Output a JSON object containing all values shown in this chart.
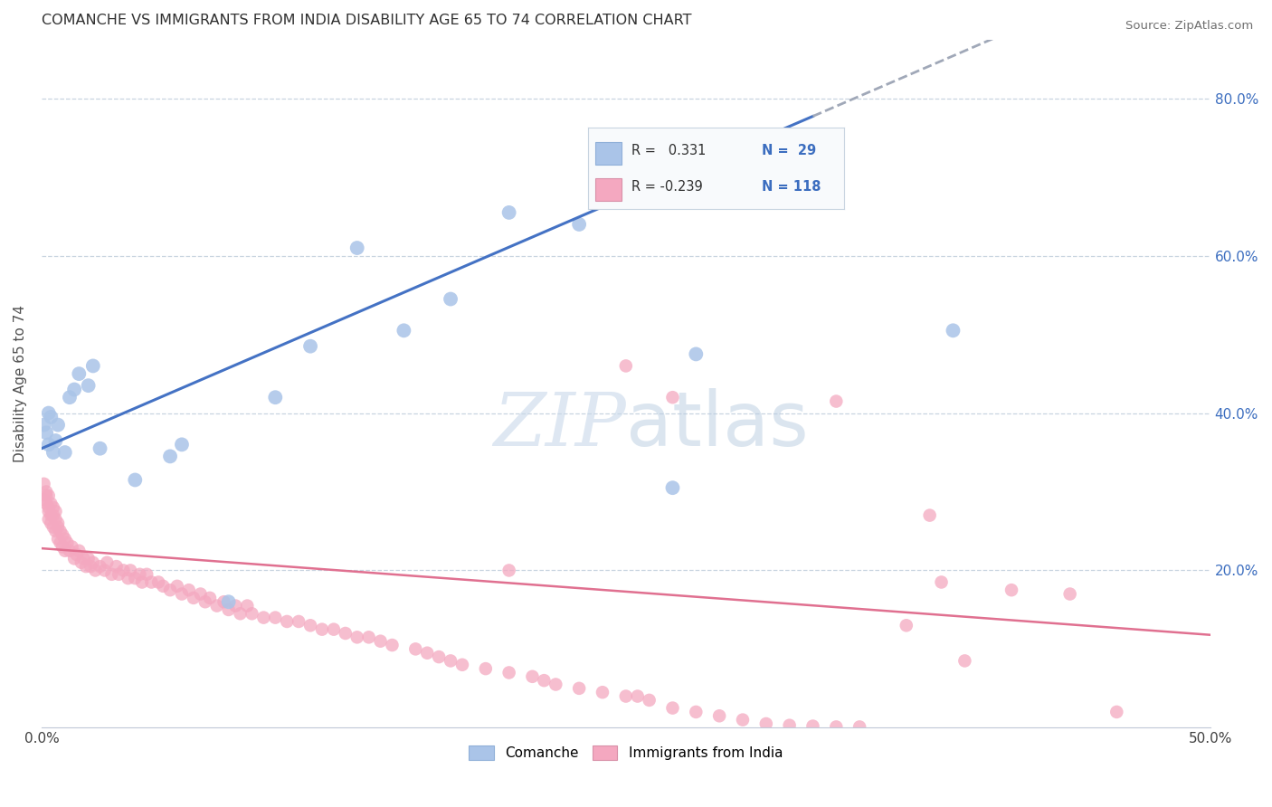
{
  "title": "COMANCHE VS IMMIGRANTS FROM INDIA DISABILITY AGE 65 TO 74 CORRELATION CHART",
  "source": "Source: ZipAtlas.com",
  "ylabel": "Disability Age 65 to 74",
  "xlim": [
    0.0,
    0.5
  ],
  "ylim": [
    0.0,
    0.875
  ],
  "comanche_color": "#aac4e8",
  "india_color": "#f4a8c0",
  "trend_comanche_solid_color": "#4472c4",
  "trend_comanche_dash_color": "#a0a8b8",
  "trend_india_color": "#e07090",
  "background_color": "#ffffff",
  "grid_color": "#c8d4e0",
  "watermark_color": "#c8d8ea",
  "comanche_x": [
    0.001,
    0.002,
    0.003,
    0.003,
    0.004,
    0.005,
    0.006,
    0.007,
    0.01,
    0.012,
    0.014,
    0.016,
    0.02,
    0.022,
    0.025,
    0.04,
    0.055,
    0.06,
    0.08,
    0.1,
    0.115,
    0.135,
    0.155,
    0.175,
    0.2,
    0.23,
    0.27,
    0.39,
    0.28
  ],
  "comanche_y": [
    0.385,
    0.375,
    0.4,
    0.36,
    0.395,
    0.35,
    0.365,
    0.385,
    0.35,
    0.42,
    0.43,
    0.45,
    0.435,
    0.46,
    0.355,
    0.315,
    0.345,
    0.36,
    0.16,
    0.42,
    0.485,
    0.61,
    0.505,
    0.545,
    0.655,
    0.64,
    0.305,
    0.505,
    0.475
  ],
  "india_x": [
    0.001,
    0.001,
    0.002,
    0.002,
    0.002,
    0.003,
    0.003,
    0.003,
    0.003,
    0.004,
    0.004,
    0.004,
    0.005,
    0.005,
    0.005,
    0.006,
    0.006,
    0.006,
    0.007,
    0.007,
    0.007,
    0.008,
    0.008,
    0.009,
    0.009,
    0.01,
    0.01,
    0.011,
    0.012,
    0.013,
    0.014,
    0.015,
    0.016,
    0.017,
    0.018,
    0.019,
    0.02,
    0.021,
    0.022,
    0.023,
    0.025,
    0.027,
    0.028,
    0.03,
    0.032,
    0.033,
    0.035,
    0.037,
    0.038,
    0.04,
    0.042,
    0.043,
    0.045,
    0.047,
    0.05,
    0.052,
    0.055,
    0.058,
    0.06,
    0.063,
    0.065,
    0.068,
    0.07,
    0.072,
    0.075,
    0.078,
    0.08,
    0.083,
    0.085,
    0.088,
    0.09,
    0.095,
    0.1,
    0.105,
    0.11,
    0.115,
    0.12,
    0.125,
    0.13,
    0.135,
    0.14,
    0.145,
    0.15,
    0.16,
    0.165,
    0.17,
    0.175,
    0.18,
    0.19,
    0.2,
    0.21,
    0.215,
    0.22,
    0.23,
    0.24,
    0.25,
    0.255,
    0.26,
    0.27,
    0.28,
    0.29,
    0.3,
    0.31,
    0.32,
    0.33,
    0.34,
    0.35,
    0.37,
    0.385,
    0.395,
    0.415,
    0.44,
    0.46,
    0.25,
    0.27,
    0.38,
    0.34,
    0.2
  ],
  "india_y": [
    0.29,
    0.31,
    0.295,
    0.285,
    0.3,
    0.28,
    0.265,
    0.295,
    0.275,
    0.285,
    0.27,
    0.26,
    0.27,
    0.255,
    0.28,
    0.265,
    0.25,
    0.275,
    0.26,
    0.255,
    0.24,
    0.25,
    0.235,
    0.245,
    0.23,
    0.24,
    0.225,
    0.235,
    0.225,
    0.23,
    0.215,
    0.22,
    0.225,
    0.21,
    0.215,
    0.205,
    0.215,
    0.205,
    0.21,
    0.2,
    0.205,
    0.2,
    0.21,
    0.195,
    0.205,
    0.195,
    0.2,
    0.19,
    0.2,
    0.19,
    0.195,
    0.185,
    0.195,
    0.185,
    0.185,
    0.18,
    0.175,
    0.18,
    0.17,
    0.175,
    0.165,
    0.17,
    0.16,
    0.165,
    0.155,
    0.16,
    0.15,
    0.155,
    0.145,
    0.155,
    0.145,
    0.14,
    0.14,
    0.135,
    0.135,
    0.13,
    0.125,
    0.125,
    0.12,
    0.115,
    0.115,
    0.11,
    0.105,
    0.1,
    0.095,
    0.09,
    0.085,
    0.08,
    0.075,
    0.07,
    0.065,
    0.06,
    0.055,
    0.05,
    0.045,
    0.04,
    0.04,
    0.035,
    0.025,
    0.02,
    0.015,
    0.01,
    0.005,
    0.003,
    0.002,
    0.001,
    0.001,
    0.13,
    0.185,
    0.085,
    0.175,
    0.17,
    0.02,
    0.46,
    0.42,
    0.27,
    0.415,
    0.2
  ],
  "trend_comanche_intercept": 0.355,
  "trend_comanche_slope": 1.28,
  "trend_india_intercept": 0.228,
  "trend_india_slope": -0.22,
  "solid_cutoff": 0.33,
  "legend_R1": "R =   0.331",
  "legend_N1": "N =  29",
  "legend_R2": "R = -0.239",
  "legend_N2": "N = 118",
  "legend_label1": "Comanche",
  "legend_label2": "Immigrants from India"
}
